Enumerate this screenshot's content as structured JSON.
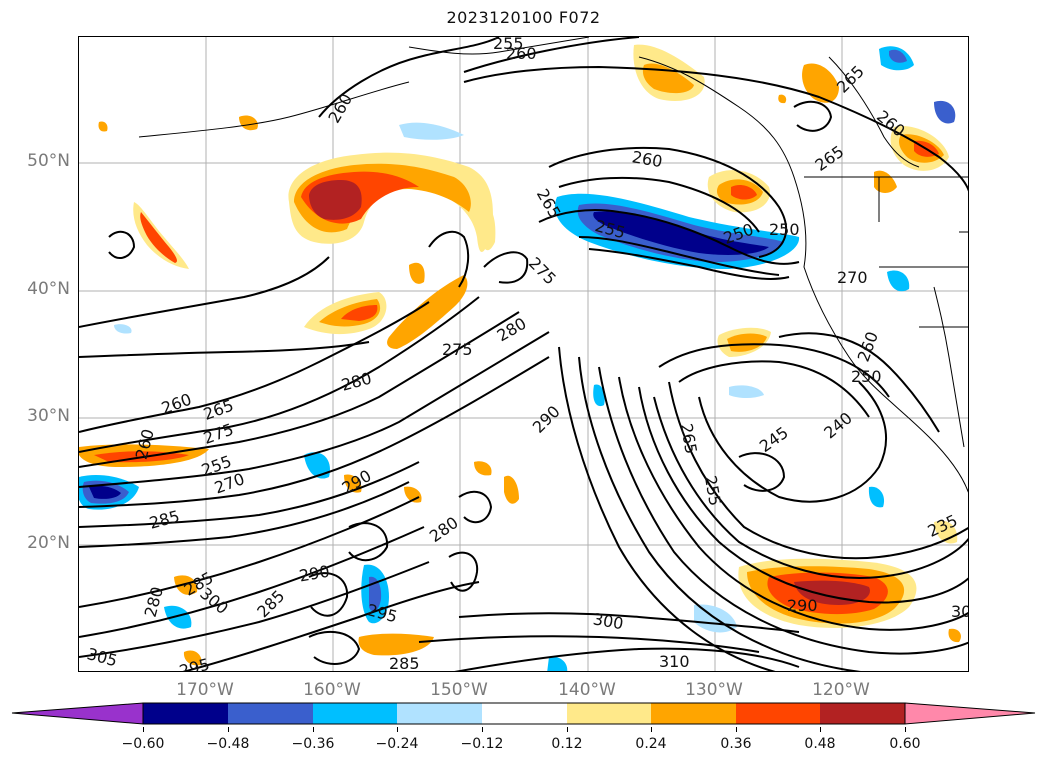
{
  "title": "2023120100 F072",
  "lat_labels": [
    {
      "text": "50°N",
      "deg": 50
    },
    {
      "text": "40°N",
      "deg": 40
    },
    {
      "text": "30°N",
      "deg": 30
    },
    {
      "text": "20°N",
      "deg": 20
    }
  ],
  "lon_labels": [
    {
      "text": "170°W",
      "deg": -170
    },
    {
      "text": "160°W",
      "deg": -160
    },
    {
      "text": "150°W",
      "deg": -150
    },
    {
      "text": "140°W",
      "deg": -140
    },
    {
      "text": "130°W",
      "deg": -130
    },
    {
      "text": "120°W",
      "deg": -120
    }
  ],
  "colorbar": {
    "colors": [
      "#9932cc",
      "#00008b",
      "#3a5fcd",
      "#00bfff",
      "#b0e2ff",
      "#ffffff",
      "#ffe98a",
      "#ffa500",
      "#ff4500",
      "#b22222",
      "#ff88aa"
    ],
    "ticks": [
      "−0.60",
      "−0.48",
      "−0.36",
      "−0.24",
      "−0.12",
      "0.12",
      "0.24",
      "0.36",
      "0.48",
      "0.60"
    ]
  },
  "contour_labels": [
    "255",
    "260",
    "260",
    "265",
    "265",
    "260",
    "260",
    "265",
    "250",
    "255",
    "250",
    "270",
    "270",
    "275",
    "280",
    "275",
    "280",
    "260",
    "265",
    "275",
    "255",
    "270",
    "260",
    "285",
    "290",
    "290",
    "265",
    "255",
    "245",
    "240",
    "260",
    "250",
    "280",
    "285",
    "290",
    "280",
    "300",
    "285",
    "295",
    "300",
    "305",
    "295",
    "285",
    "310",
    "290",
    "235",
    "30"
  ]
}
